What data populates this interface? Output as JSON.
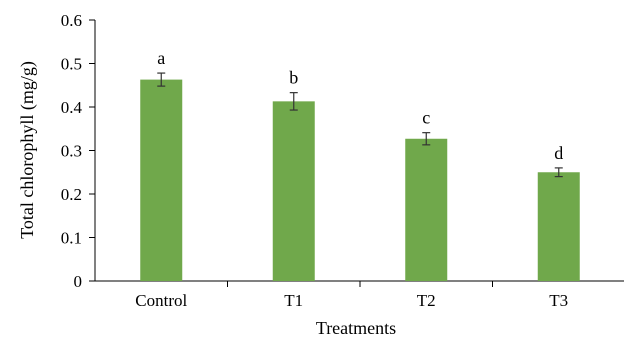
{
  "chart_data": {
    "type": "bar",
    "categories": [
      "Control",
      "T1",
      "T2",
      "T3"
    ],
    "values": [
      0.463,
      0.413,
      0.327,
      0.25
    ],
    "errors": [
      0.015,
      0.02,
      0.014,
      0.01
    ],
    "significance": [
      "a",
      "b",
      "c",
      "d"
    ],
    "title": "",
    "xlabel": "Treatments",
    "ylabel": "Total chlorophyll (mg/g)",
    "ylim": [
      0,
      0.6
    ],
    "yticks": [
      "0",
      "0.1",
      "0.2",
      "0.3",
      "0.4",
      "0.5",
      "0.6"
    ],
    "bar_color": "#70a84b",
    "grid": false
  }
}
